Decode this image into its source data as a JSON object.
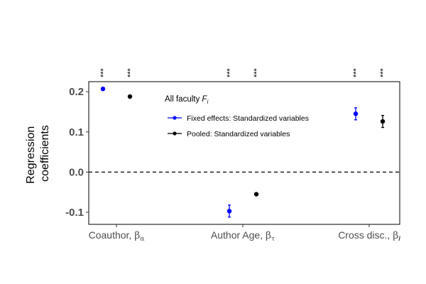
{
  "chart_data": {
    "type": "scatter",
    "ylabel_lines": [
      "Regression",
      "coefficients"
    ],
    "ylim": [
      -0.13,
      0.225
    ],
    "yticks": [
      {
        "value": 0.2,
        "label": "0.2"
      },
      {
        "value": 0.1,
        "label": "0.1"
      },
      {
        "value": 0.0,
        "label": "0.0"
      },
      {
        "value": -0.1,
        "label": "-0.1"
      }
    ],
    "reference_line": {
      "y": 0,
      "style": "dashed"
    },
    "categories": [
      {
        "label": "Coauthor, ",
        "symbol": "β",
        "subscript": "α"
      },
      {
        "label": "Author Age, ",
        "symbol": "β",
        "subscript": "τ"
      },
      {
        "label": "Cross disc., ",
        "symbol": "β",
        "subscript": "I"
      }
    ],
    "legend": {
      "title": "All faculty ",
      "title_symbol": "F",
      "title_subscript": "i"
    },
    "series": [
      {
        "name": "Fixed effects: Standardized variables",
        "color": "#0000ff",
        "values": [
          0.207,
          -0.097,
          0.145
        ],
        "ci_low": [
          0.204,
          -0.112,
          0.13
        ],
        "ci_high": [
          0.21,
          -0.082,
          0.16
        ],
        "significance": [
          "***",
          "***",
          "***"
        ]
      },
      {
        "name": "Pooled: Standardized variables",
        "color": "#000000",
        "values": [
          0.188,
          -0.055,
          0.126
        ],
        "ci_low": [
          0.186,
          -0.057,
          0.111
        ],
        "ci_high": [
          0.19,
          -0.053,
          0.141
        ],
        "significance": [
          "***",
          "***",
          "***"
        ]
      }
    ]
  }
}
